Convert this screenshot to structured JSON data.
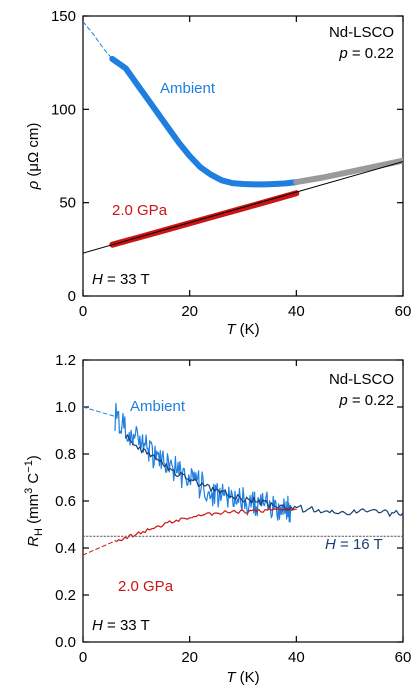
{
  "chart_data": [
    {
      "type": "line",
      "panel": "top",
      "xlabel": "T (K)",
      "ylabel": "ρ (μΩ cm)",
      "xlim": [
        0,
        60
      ],
      "ylim": [
        0,
        150
      ],
      "xticks": [
        0,
        20,
        40,
        60
      ],
      "yticks": [
        0,
        50,
        100,
        150
      ],
      "grid": false,
      "annotations": {
        "material": "Nd-LSCO",
        "doping_prefix": "p",
        "doping_value": "= 0.22",
        "field_prefix": "H",
        "field_value": "= 33 T"
      },
      "series": [
        {
          "name": "Ambient",
          "color": "#1f7fe0",
          "x": [
            5.5,
            8,
            10,
            12,
            14,
            16,
            18,
            20,
            22,
            24,
            26,
            28,
            30,
            32,
            34,
            36,
            38,
            40
          ],
          "y": [
            127,
            122,
            114,
            106,
            98,
            90,
            82,
            75,
            69,
            65,
            62,
            60.5,
            60,
            59.8,
            59.8,
            60,
            60.3,
            61
          ]
        },
        {
          "name": "",
          "color": "#9a9a9a",
          "x": [
            40,
            45,
            50,
            55,
            60
          ],
          "y": [
            61,
            63.5,
            66.5,
            69.5,
            72.5
          ]
        },
        {
          "name": "",
          "color": "#1f7fe0",
          "style": "dashed",
          "x": [
            0,
            2,
            4,
            5.5
          ],
          "y": [
            147,
            140,
            132,
            127
          ]
        },
        {
          "name": "2.0 GPa",
          "color": "#cc1414",
          "x": [
            5.5,
            10,
            15,
            20,
            25,
            30,
            35,
            40
          ],
          "y": [
            27.5,
            31,
            35,
            39,
            43,
            47,
            51,
            55
          ]
        },
        {
          "name": "",
          "color": "#000000",
          "style": "thin",
          "x": [
            0,
            60
          ],
          "y": [
            23,
            72
          ]
        }
      ]
    },
    {
      "type": "line",
      "panel": "bottom",
      "xlabel": "T (K)",
      "ylabel": "RH (mm3 C−1)",
      "xlim": [
        0,
        60
      ],
      "ylim": [
        0,
        1.2
      ],
      "xticks": [
        0,
        20,
        40,
        60
      ],
      "yticks": [
        0,
        0.2,
        0.4,
        0.6,
        0.8,
        1.0,
        1.2
      ],
      "grid": false,
      "annotations": {
        "material": "Nd-LSCO",
        "doping_prefix": "p",
        "doping_value": "= 0.22",
        "field_prefix": "H",
        "field_value": "= 33 T",
        "field16_prefix": "H",
        "field16_value": "= 16 T"
      },
      "series": [
        {
          "name": "Ambient",
          "color": "#1f7fe0",
          "x": [
            6,
            8,
            10,
            12,
            14,
            16,
            18,
            20,
            22,
            24,
            26,
            28,
            30,
            32,
            34,
            36,
            38,
            39
          ],
          "y": [
            0.96,
            0.91,
            0.86,
            0.82,
            0.78,
            0.75,
            0.72,
            0.69,
            0.67,
            0.64,
            0.62,
            0.61,
            0.6,
            0.59,
            0.58,
            0.58,
            0.57,
            0.57
          ]
        },
        {
          "name": "H = 16 T",
          "color": "#1a3f73",
          "x": [
            8,
            12,
            16,
            20,
            24,
            28,
            32,
            36,
            40,
            45,
            50,
            55,
            60
          ],
          "y": [
            0.88,
            0.8,
            0.74,
            0.69,
            0.65,
            0.62,
            0.6,
            0.58,
            0.57,
            0.56,
            0.555,
            0.55,
            0.55
          ]
        },
        {
          "name": "",
          "color": "#1f7fe0",
          "style": "dashed",
          "x": [
            0,
            6
          ],
          "y": [
            1.0,
            0.96
          ]
        },
        {
          "name": "2.0 GPa",
          "color": "#cc1414",
          "x": [
            6,
            10,
            15,
            20,
            25,
            30,
            35,
            40
          ],
          "y": [
            0.43,
            0.46,
            0.5,
            0.53,
            0.55,
            0.555,
            0.56,
            0.565
          ]
        },
        {
          "name": "",
          "color": "#cc1414",
          "style": "dashed",
          "x": [
            0,
            6
          ],
          "y": [
            0.37,
            0.43
          ]
        },
        {
          "name": "",
          "color": "#555555",
          "style": "dotted",
          "x": [
            0,
            60
          ],
          "y": [
            0.45,
            0.45
          ]
        }
      ]
    }
  ]
}
